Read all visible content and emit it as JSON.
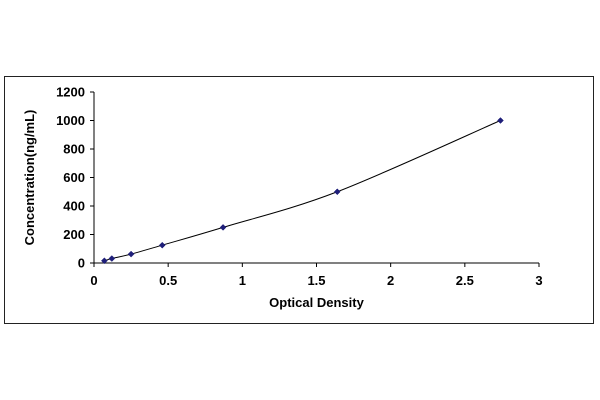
{
  "chart_data": {
    "type": "scatter",
    "title": "",
    "xlabel": "Optical Density",
    "ylabel": "Concentration(ng/mL)",
    "xlim": [
      0,
      3
    ],
    "ylim": [
      0,
      1200
    ],
    "xticks": [
      0,
      0.5,
      1,
      1.5,
      2,
      2.5,
      3
    ],
    "xtick_labels": [
      "0",
      "0.5",
      "1",
      "1.5",
      "2",
      "2.5",
      "3"
    ],
    "yticks": [
      0,
      200,
      400,
      600,
      800,
      1000,
      1200
    ],
    "ytick_labels": [
      "0",
      "200",
      "400",
      "600",
      "800",
      "1000",
      "1200"
    ],
    "grid": false,
    "legend": "none",
    "trendline": "smooth curve through points",
    "series": [
      {
        "color": "#1f1f7a",
        "marker": "diamond",
        "x": [
          0.07,
          0.12,
          0.25,
          0.46,
          0.87,
          1.64,
          2.74
        ],
        "y": [
          15.6,
          31.2,
          62.5,
          125,
          250,
          500,
          1000
        ]
      }
    ]
  }
}
